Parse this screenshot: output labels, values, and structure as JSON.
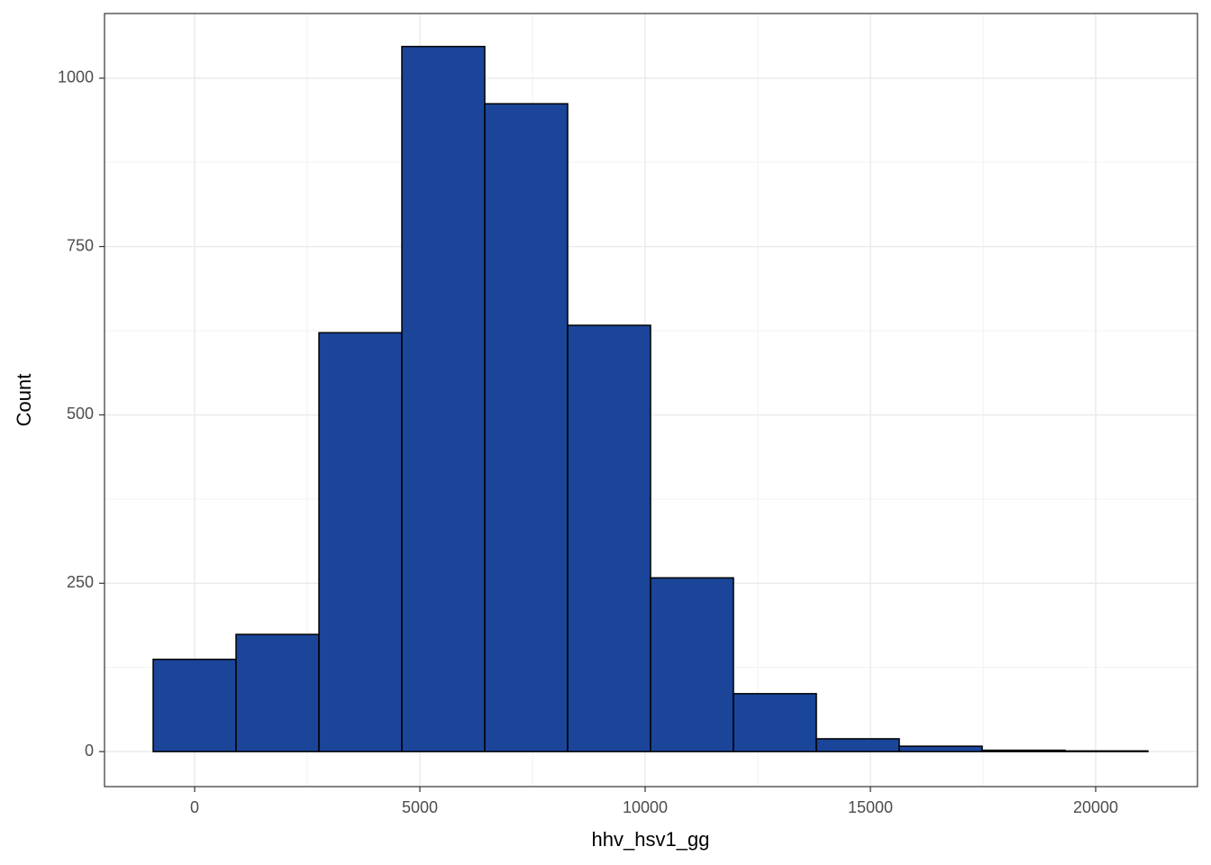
{
  "chart_data": {
    "type": "histogram",
    "x_label": "hhv_hsv1_gg",
    "y_label": "Count",
    "bins": [
      -920,
      920,
      2760,
      4600,
      6440,
      8280,
      10120,
      11960,
      13800,
      15640,
      17480,
      19320,
      21160
    ],
    "values": [
      137,
      174,
      622,
      1047,
      962,
      633,
      258,
      86,
      19,
      8,
      2,
      1
    ],
    "color": "#1a4599",
    "edge_color": "#000000",
    "xlim": [
      -2000,
      22260
    ],
    "ylim": [
      -52,
      1096
    ],
    "xticks": [
      0,
      5000,
      10000,
      15000,
      20000
    ],
    "yticks": [
      0,
      250,
      500,
      750,
      1000
    ],
    "grid": true
  }
}
